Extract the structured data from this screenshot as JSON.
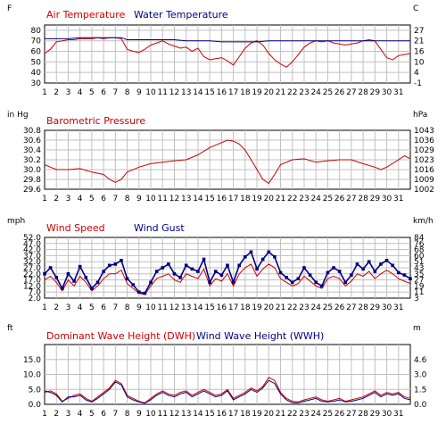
{
  "colors": {
    "primary": "#cc0000",
    "secondary": "#000080",
    "grid": "#c0c0c0",
    "frame": "#000000",
    "text": "#000000"
  },
  "chart_data": [
    {
      "type": "line",
      "left_unit": "F",
      "right_unit": "C",
      "yticks_left": [
        "80",
        "70",
        "60",
        "50",
        "40",
        "30"
      ],
      "yticks_right": [
        "27",
        "21",
        "16",
        "10",
        "4",
        "-1"
      ],
      "ylim": [
        30,
        85
      ],
      "x_ticks": [
        "1",
        "2",
        "3",
        "4",
        "5",
        "6",
        "7",
        "8",
        "9",
        "10",
        "11",
        "12",
        "13",
        "14",
        "15",
        "16",
        "17",
        "18",
        "19",
        "20",
        "21",
        "22",
        "23",
        "24",
        "25",
        "26",
        "27",
        "28",
        "29",
        "30",
        "31"
      ],
      "xlim": [
        1,
        32
      ],
      "series": [
        {
          "name": "Air Temperature",
          "color": "#cc0000",
          "x": [
            1,
            1.5,
            2,
            2.5,
            3,
            3.5,
            4,
            4.5,
            5,
            5.5,
            6,
            6.5,
            7,
            7.5,
            8,
            8.5,
            9,
            9.5,
            10,
            10.5,
            11,
            11.5,
            12,
            12.5,
            13,
            13.5,
            14,
            14.5,
            15,
            15.5,
            16,
            16.5,
            17,
            17.5,
            18,
            18.5,
            19,
            19.5,
            20,
            20.5,
            21,
            21.5,
            22,
            22.5,
            23,
            23.5,
            24,
            24.5,
            25,
            25.5,
            26,
            26.5,
            27,
            27.5,
            28,
            28.5,
            29,
            29.5,
            30,
            30.5,
            31,
            31.5,
            32
          ],
          "y": [
            58,
            62,
            69,
            70,
            71,
            71,
            72,
            72,
            72,
            73,
            72,
            73,
            73,
            72,
            62,
            60,
            59,
            62,
            66,
            68,
            70,
            67,
            65,
            63,
            64,
            60,
            63,
            55,
            52,
            53,
            54,
            51,
            47,
            55,
            63,
            68,
            70,
            66,
            58,
            52,
            48,
            45,
            50,
            57,
            64,
            68,
            70,
            69,
            70,
            68,
            67,
            66,
            67,
            68,
            70,
            71,
            70,
            62,
            54,
            52,
            56,
            57,
            58
          ]
        },
        {
          "name": "Water Temperature",
          "color": "#000080",
          "x": [
            1,
            2,
            3,
            4,
            5,
            6,
            7,
            7.5,
            8,
            9,
            10,
            11,
            12,
            13,
            14,
            15,
            16,
            17,
            18,
            19,
            20,
            21,
            22,
            23,
            24,
            25,
            26,
            27,
            28,
            29,
            30,
            31,
            32
          ],
          "y": [
            72,
            72,
            72,
            73,
            73,
            73,
            73,
            73,
            71,
            71,
            71,
            71,
            71,
            70,
            70,
            70,
            69,
            69,
            69,
            69,
            70,
            70,
            70,
            70,
            70,
            70,
            70,
            70,
            70,
            70,
            70,
            70,
            70
          ]
        }
      ]
    },
    {
      "type": "line",
      "left_unit": "in Hg",
      "right_unit": "hPa",
      "yticks_left": [
        "30.8",
        "30.6",
        "30.4",
        "30.2",
        "30.0",
        "29.8",
        "29.6"
      ],
      "yticks_right": [
        "1043",
        "1036",
        "1029",
        "1023",
        "1016",
        "1009",
        "1002"
      ],
      "ylim": [
        29.6,
        30.8
      ],
      "x_ticks": [
        "1",
        "2",
        "3",
        "4",
        "5",
        "6",
        "7",
        "8",
        "9",
        "10",
        "11",
        "12",
        "13",
        "14",
        "15",
        "16",
        "17",
        "18",
        "19",
        "20",
        "21",
        "22",
        "23",
        "24",
        "25",
        "26",
        "27",
        "28",
        "29",
        "30",
        "31"
      ],
      "xlim": [
        1,
        32
      ],
      "series": [
        {
          "name": "Barometric Pressure",
          "color": "#cc0000",
          "x": [
            1,
            1.5,
            2,
            3,
            4,
            5,
            6,
            6.5,
            7,
            7.5,
            8,
            9,
            10,
            11,
            12,
            13,
            14,
            15,
            16,
            16.5,
            17,
            17.5,
            18,
            18.5,
            19,
            19.5,
            20,
            20.5,
            21,
            22,
            23,
            24,
            25,
            26,
            27,
            28,
            29,
            29.5,
            30,
            31,
            31.5,
            32
          ],
          "y": [
            30.1,
            30.05,
            30.0,
            30.0,
            30.02,
            29.95,
            29.9,
            29.8,
            29.74,
            29.8,
            29.95,
            30.05,
            30.12,
            30.15,
            30.18,
            30.2,
            30.3,
            30.45,
            30.55,
            30.6,
            30.58,
            30.52,
            30.4,
            30.2,
            30.0,
            29.8,
            29.72,
            29.9,
            30.1,
            30.2,
            30.22,
            30.15,
            30.18,
            30.2,
            30.2,
            30.12,
            30.05,
            30.0,
            30.05,
            30.2,
            30.28,
            30.22
          ]
        }
      ]
    },
    {
      "type": "line",
      "left_unit": "mph",
      "right_unit": "km/h",
      "yticks_left": [
        "2.0",
        "7.0",
        "12.0",
        "17.0",
        "22.0",
        "27.0",
        "32.0",
        "37.0",
        "42.0",
        "47.0",
        "52.0"
      ],
      "yticks_right": [
        "3",
        "11",
        "19",
        "27",
        "35",
        "43",
        "51",
        "60",
        "68",
        "76",
        "84"
      ],
      "ylim": [
        2,
        52
      ],
      "x_ticks": [
        "1",
        "2",
        "3",
        "4",
        "5",
        "6",
        "7",
        "8",
        "9",
        "10",
        "11",
        "12",
        "13",
        "14",
        "15",
        "16",
        "17",
        "18",
        "19",
        "20",
        "21",
        "22",
        "23",
        "24",
        "25",
        "26",
        "27",
        "28",
        "29",
        "30",
        "31"
      ],
      "xlim": [
        1,
        32
      ],
      "series": [
        {
          "name": "Wind Speed",
          "color": "#cc0000",
          "x": [
            1,
            1.5,
            2,
            2.5,
            3,
            3.5,
            4,
            4.5,
            5,
            5.5,
            6,
            6.5,
            7,
            7.5,
            8,
            8.5,
            9,
            9.5,
            10,
            10.5,
            11,
            11.5,
            12,
            12.5,
            13,
            13.5,
            14,
            14.5,
            15,
            15.5,
            16,
            16.5,
            17,
            17.5,
            18,
            18.5,
            19,
            19.5,
            20,
            20.5,
            21,
            21.5,
            22,
            22.5,
            23,
            23.5,
            24,
            24.5,
            25,
            25.5,
            26,
            26.5,
            27,
            27.5,
            28,
            28.5,
            29,
            29.5,
            30,
            30.5,
            31,
            31.5,
            32
          ],
          "y": [
            17,
            20,
            15,
            8,
            17,
            12,
            20,
            15,
            8,
            12,
            18,
            22,
            22,
            25,
            14,
            10,
            6,
            5,
            12,
            18,
            20,
            22,
            17,
            15,
            22,
            20,
            18,
            26,
            12,
            18,
            16,
            22,
            12,
            22,
            27,
            30,
            20,
            26,
            30,
            27,
            18,
            15,
            12,
            14,
            20,
            16,
            12,
            10,
            18,
            20,
            18,
            12,
            16,
            22,
            20,
            24,
            18,
            22,
            25,
            22,
            18,
            16,
            14
          ]
        },
        {
          "name": "Wind Gust",
          "color": "#000080",
          "x": [
            1,
            1.5,
            2,
            2.5,
            3,
            3.5,
            4,
            4.5,
            5,
            5.5,
            6,
            6.5,
            7,
            7.5,
            8,
            8.5,
            9,
            9.5,
            10,
            10.5,
            11,
            11.5,
            12,
            12.5,
            13,
            13.5,
            14,
            14.5,
            15,
            15.5,
            16,
            16.5,
            17,
            17.5,
            18,
            18.5,
            19,
            19.5,
            20,
            20.5,
            21,
            21.5,
            22,
            22.5,
            23,
            23.5,
            24,
            24.5,
            25,
            25.5,
            26,
            26.5,
            27,
            27.5,
            28,
            28.5,
            29,
            29.5,
            30,
            30.5,
            31,
            31.5,
            32
          ],
          "y": [
            22,
            27,
            19,
            10,
            22,
            16,
            28,
            19,
            10,
            15,
            24,
            29,
            30,
            33,
            18,
            13,
            7,
            6,
            15,
            24,
            27,
            30,
            22,
            19,
            29,
            26,
            24,
            34,
            15,
            24,
            21,
            29,
            15,
            29,
            36,
            40,
            26,
            34,
            40,
            36,
            23,
            19,
            15,
            18,
            27,
            21,
            15,
            12,
            23,
            27,
            24,
            15,
            21,
            30,
            26,
            32,
            24,
            30,
            33,
            29,
            23,
            21,
            18
          ]
        }
      ]
    },
    {
      "type": "line",
      "left_unit": "ft",
      "right_unit": "m",
      "yticks_left": [
        "0.0",
        "5.0",
        "10.0",
        "15.0"
      ],
      "yticks_right": [
        "0.0",
        "1.5",
        "3.0",
        "4.6"
      ],
      "ylim": [
        0,
        20
      ],
      "x_ticks": [
        "1",
        "2",
        "3",
        "4",
        "5",
        "6",
        "7",
        "8",
        "9",
        "10",
        "11",
        "12",
        "13",
        "14",
        "15",
        "16",
        "17",
        "18",
        "19",
        "20",
        "21",
        "22",
        "23",
        "24",
        "25",
        "26",
        "27",
        "28",
        "29",
        "30",
        "31"
      ],
      "xlim": [
        1,
        32
      ],
      "series": [
        {
          "name": "Dominant Wave Height (DWH)",
          "color": "#cc0000",
          "x": [
            1,
            1.5,
            2,
            2.5,
            3,
            3.5,
            4,
            4.5,
            5,
            5.5,
            6,
            6.5,
            7,
            7.5,
            8,
            8.5,
            9,
            9.5,
            10,
            10.5,
            11,
            11.5,
            12,
            12.5,
            13,
            13.5,
            14,
            14.5,
            15,
            15.5,
            16,
            16.5,
            17,
            17.5,
            18,
            18.5,
            19,
            19.5,
            20,
            20.5,
            21,
            21.5,
            22,
            22.5,
            23,
            23.5,
            24,
            24.5,
            25,
            25.5,
            26,
            26.5,
            27,
            27.5,
            28,
            28.5,
            29,
            29.5,
            30,
            30.5,
            31,
            31.5,
            32
          ],
          "y": [
            4,
            4.5,
            3.5,
            1,
            2,
            3,
            3.5,
            2,
            1,
            2.5,
            4,
            5.5,
            8,
            7,
            3,
            2,
            1,
            0.5,
            2,
            3.5,
            4.5,
            3.5,
            3,
            4,
            4.5,
            3,
            4,
            5,
            4,
            3,
            3.5,
            5,
            2,
            3,
            4,
            5.5,
            4.5,
            6,
            9,
            8,
            4,
            2,
            1,
            0.8,
            1.5,
            2,
            2.5,
            1.5,
            1,
            1.5,
            2,
            1,
            1.5,
            2,
            2.5,
            3.5,
            4.5,
            3,
            4,
            3.5,
            4,
            2.5,
            2
          ]
        },
        {
          "name": "Wind Wave Height (WWH)",
          "color": "#000080",
          "x": [
            1,
            1.5,
            2,
            2.5,
            3,
            3.5,
            4,
            4.5,
            5,
            5.5,
            6,
            6.5,
            7,
            7.5,
            8,
            8.5,
            9,
            9.5,
            10,
            10.5,
            11,
            11.5,
            12,
            12.5,
            13,
            13.5,
            14,
            14.5,
            15,
            15.5,
            16,
            16.5,
            17,
            17.5,
            18,
            18.5,
            19,
            19.5,
            20,
            20.5,
            21,
            21.5,
            22,
            22.5,
            23,
            23.5,
            24,
            24.5,
            25,
            25.5,
            26,
            26.5,
            27,
            27.5,
            28,
            28.5,
            29,
            29.5,
            30,
            30.5,
            31,
            31.5,
            32
          ],
          "y": [
            4.5,
            4,
            3,
            0.8,
            2.5,
            2.5,
            3,
            1.5,
            0.8,
            2,
            3.5,
            5,
            7.5,
            6.5,
            2.5,
            1.5,
            0.8,
            0.4,
            1.5,
            3,
            4,
            3,
            2.5,
            3.5,
            4,
            2.5,
            3.5,
            4.5,
            3.5,
            2.5,
            3,
            4.5,
            1.5,
            2.5,
            3.5,
            5,
            4,
            5.5,
            8,
            7,
            3.5,
            1.5,
            0.5,
            0.5,
            1,
            1.5,
            2,
            1,
            0.8,
            1,
            1.5,
            0.8,
            1,
            1.5,
            2,
            3,
            4,
            2.5,
            3.5,
            3,
            3.5,
            2,
            1.5
          ]
        }
      ]
    }
  ]
}
